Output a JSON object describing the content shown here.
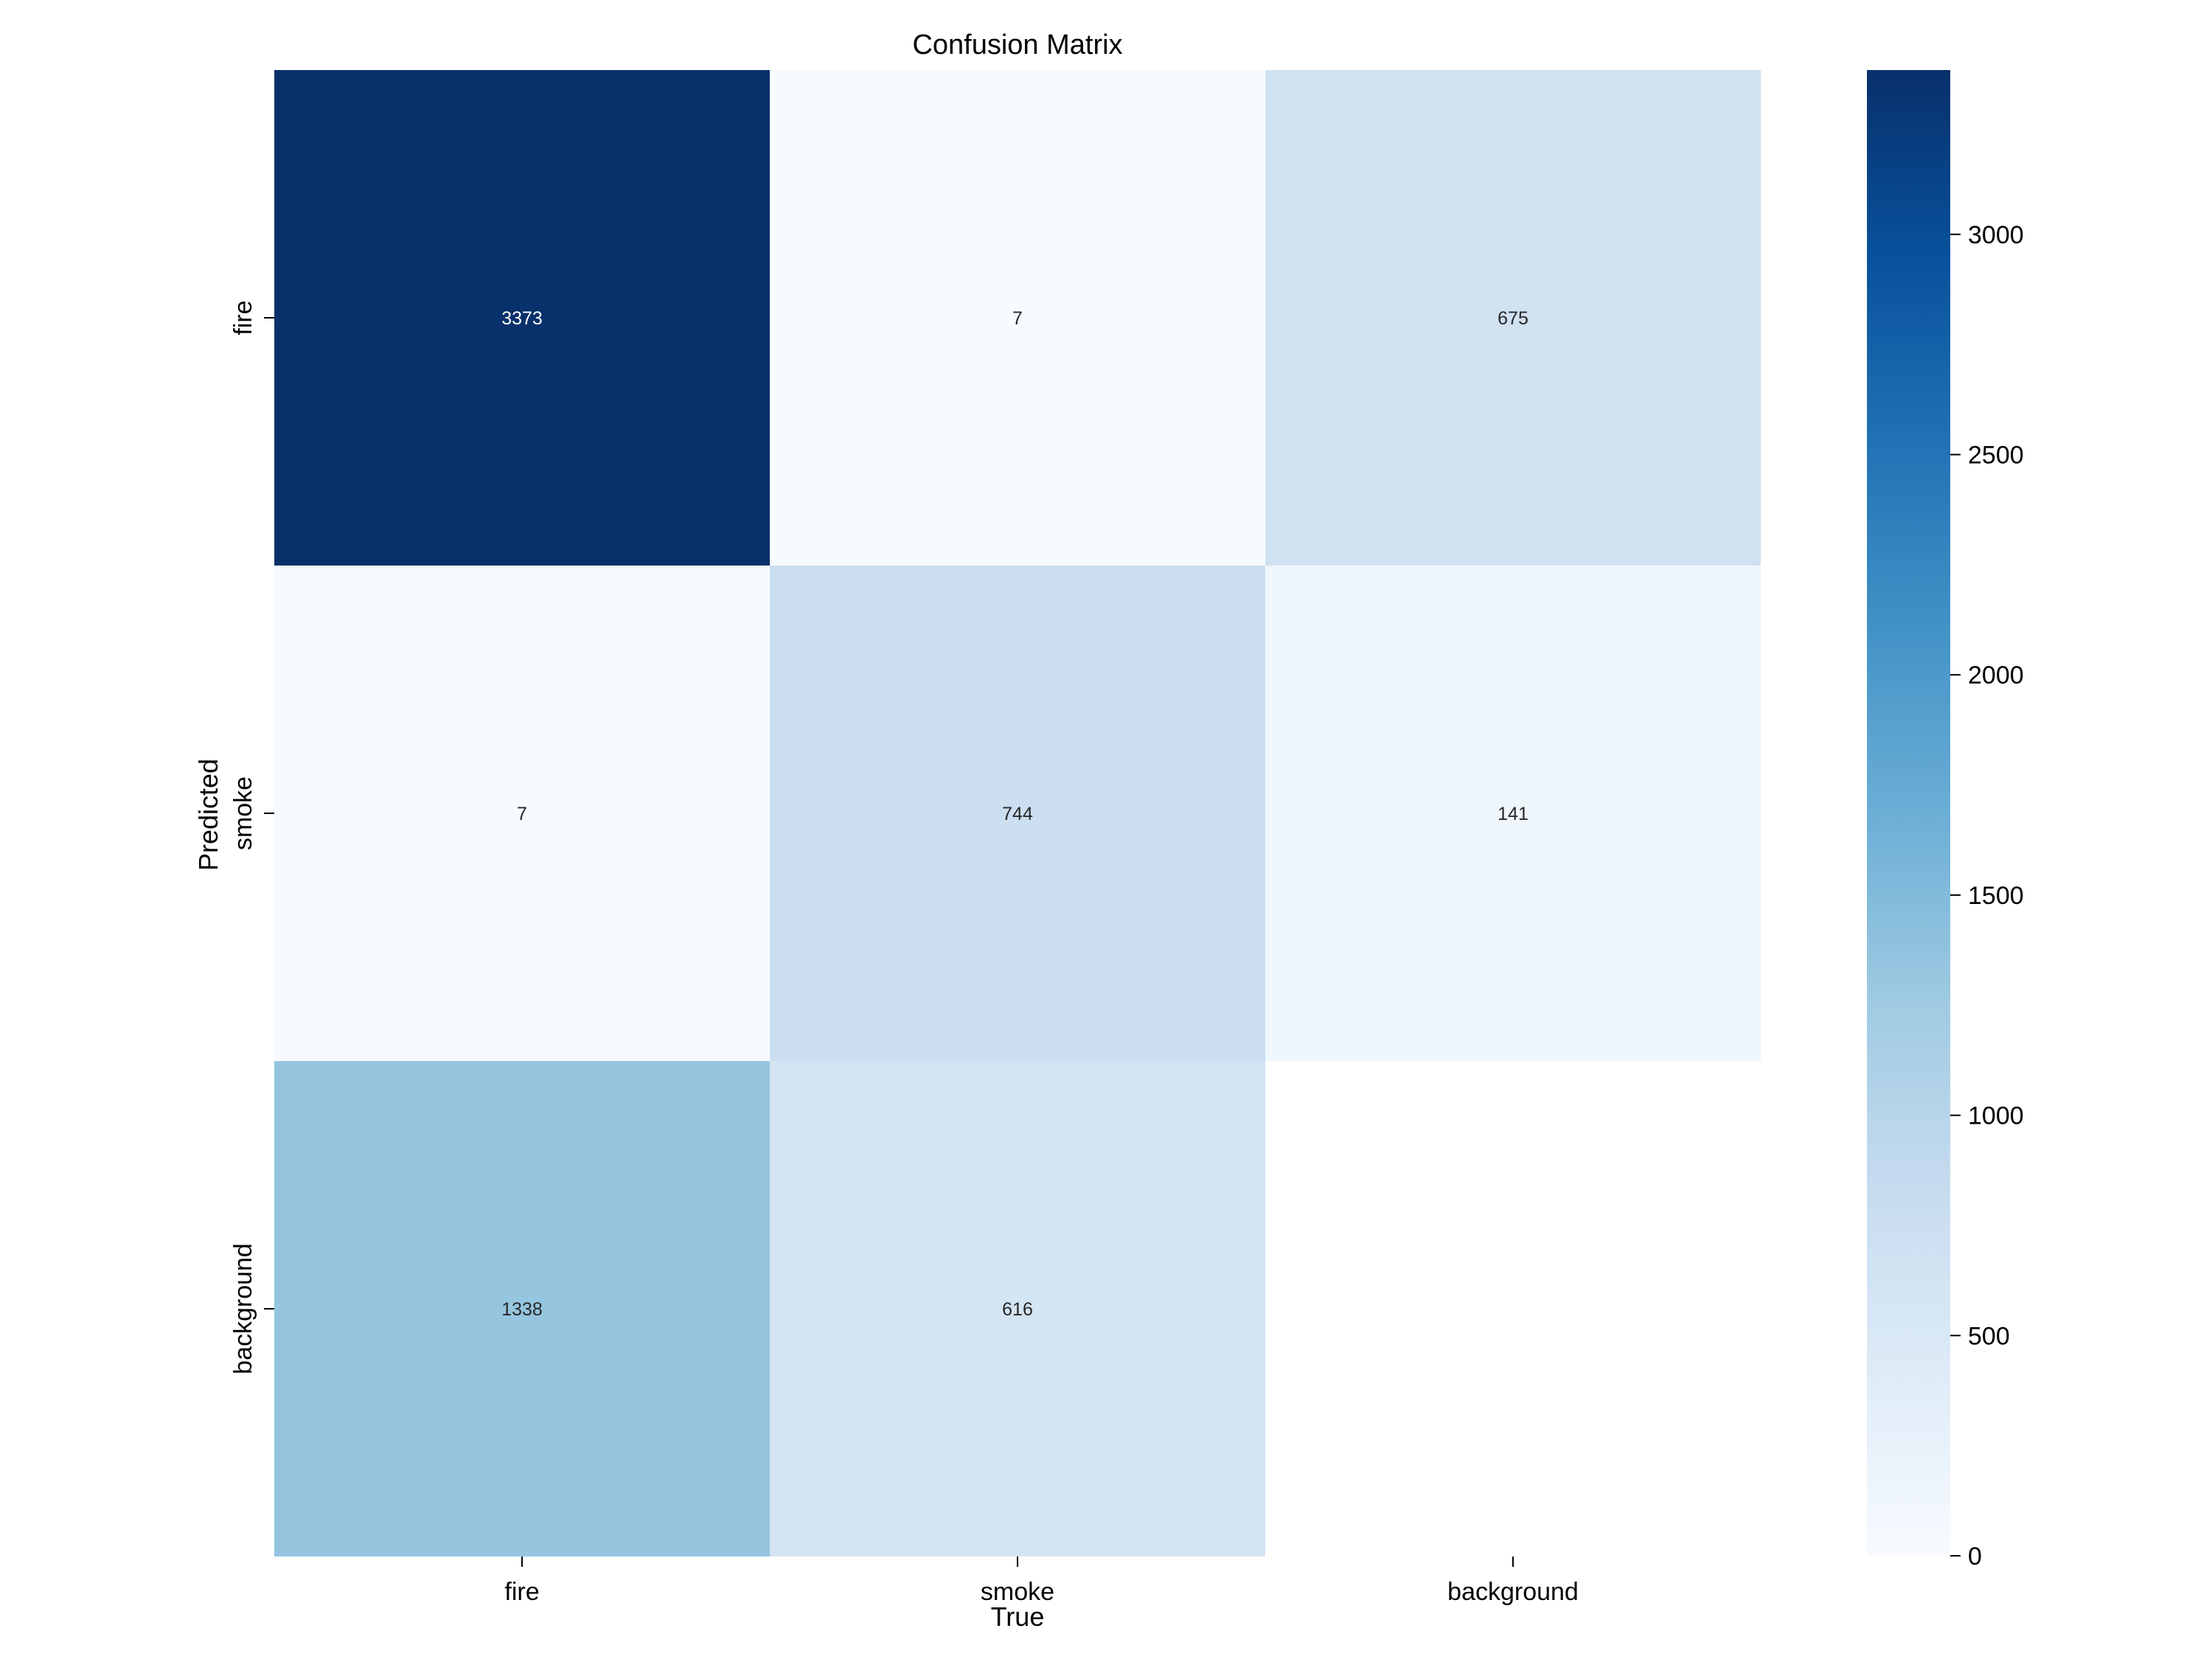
{
  "chart_data": {
    "type": "heatmap",
    "title": "Confusion Matrix",
    "xlabel": "True",
    "ylabel": "Predicted",
    "x_categories": [
      "fire",
      "smoke",
      "background"
    ],
    "y_categories": [
      "fire",
      "smoke",
      "background"
    ],
    "values": [
      [
        3373,
        7,
        675
      ],
      [
        7,
        744,
        141
      ],
      [
        1338,
        616,
        null
      ]
    ],
    "colormap": "Blues",
    "colorbar": {
      "range": [
        0,
        3373
      ],
      "ticks": [
        0,
        500,
        1000,
        1500,
        2000,
        2500,
        3000
      ]
    },
    "grid": false
  }
}
